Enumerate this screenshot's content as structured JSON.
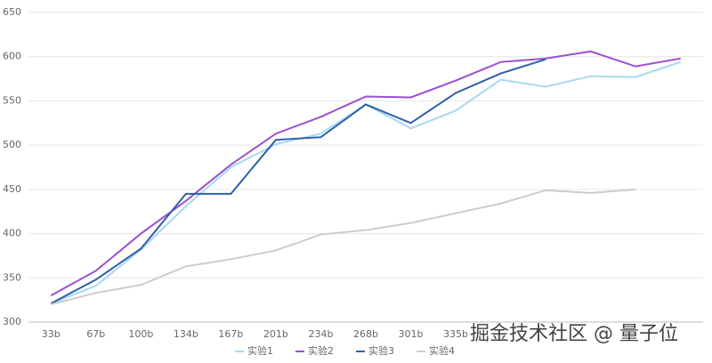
{
  "chart_data": {
    "type": "line",
    "categories": [
      "33b",
      "67b",
      "100b",
      "134b",
      "167b",
      "201b",
      "234b",
      "268b",
      "301b",
      "335b",
      null,
      null,
      null,
      null,
      null
    ],
    "series": [
      {
        "name": "实验1",
        "color": "#a8d8f0",
        "values": [
          321,
          341,
          382,
          431,
          475,
          501,
          513,
          546,
          519,
          539,
          574,
          566,
          578,
          577,
          594
        ]
      },
      {
        "name": "实验2",
        "color": "#9b4fcf",
        "values": [
          330,
          358,
          400,
          437,
          478,
          513,
          532,
          555,
          554,
          573,
          594,
          598,
          606,
          589,
          598
        ]
      },
      {
        "name": "实验3",
        "color": "#2f5fa8",
        "values": [
          321,
          348,
          383,
          445,
          445,
          506,
          509,
          546,
          525,
          559,
          581,
          597,
          null,
          null,
          null
        ]
      },
      {
        "name": "实验4",
        "color": "#cccccc",
        "values": [
          320,
          333,
          342,
          363,
          371,
          381,
          399,
          404,
          412,
          423,
          434,
          449,
          446,
          450,
          null
        ]
      }
    ],
    "ylim": [
      300,
      650
    ],
    "yticks": [
      300,
      350,
      400,
      450,
      500,
      550,
      600,
      650
    ],
    "grid": true,
    "legend": "bottom",
    "watermark": "掘金技术社区 @ 量子位"
  }
}
